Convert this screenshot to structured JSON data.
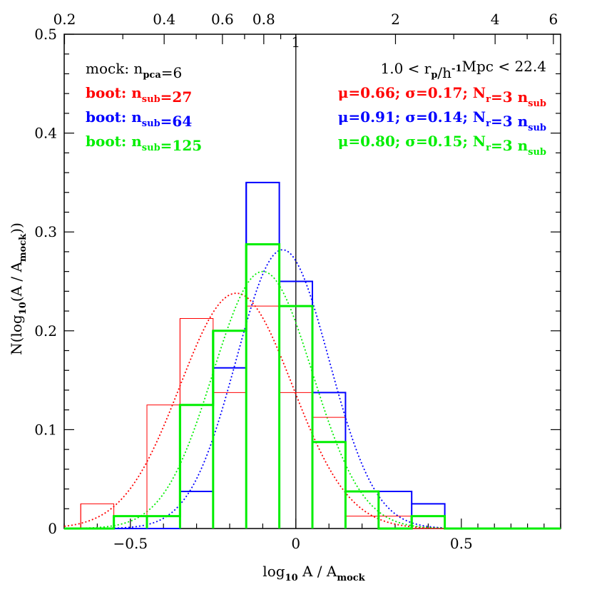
{
  "chart_data": {
    "type": "histogram",
    "xlabel": {
      "main": "log",
      "sub1": "10",
      "mid": " A / A",
      "sub2": "mock"
    },
    "ylabel": {
      "main": "N(log",
      "sub1": "10",
      "mid": "(A / A",
      "sub2": "mock",
      "end": "))"
    },
    "xlim": [
      -0.7,
      0.8
    ],
    "ylim": [
      0,
      0.5
    ],
    "x_ticks": [
      -0.5,
      0,
      0.5
    ],
    "x_tick_labels": [
      "−0.5",
      "0",
      "0.5"
    ],
    "y_ticks": [
      0,
      0.1,
      0.2,
      0.3,
      0.4,
      0.5
    ],
    "y_tick_labels": [
      "0",
      "0.1",
      "0.2",
      "0.3",
      "0.4",
      "0.5"
    ],
    "top_axis": {
      "scale": "linear-ratio",
      "tick_values": [
        0.2,
        0.4,
        0.6,
        0.8,
        2,
        4,
        6
      ],
      "tick_labels": [
        "0.2",
        "0.4",
        "0.6",
        "0.8",
        "2",
        "4",
        "6"
      ],
      "line_value": 1,
      "line_label": "1"
    },
    "bin_edges": [
      -0.65,
      -0.55,
      -0.45,
      -0.35,
      -0.25,
      -0.15,
      -0.05,
      0.05,
      0.15,
      0.25,
      0.35,
      0.45
    ],
    "series": [
      {
        "name": "boot: n_sub=27",
        "color": "#ff0000",
        "width": 1,
        "values": [
          0.025,
          0,
          0.125,
          0.2125,
          0.1375,
          0.225,
          0.1375,
          0.1125,
          0.0125,
          0.0125,
          0
        ],
        "gauss": {
          "mu": -0.18,
          "sigma": 0.17,
          "amp": 0.238
        }
      },
      {
        "name": "boot: n_sub=64",
        "color": "#0000ff",
        "width": 2,
        "values": [
          0,
          0,
          0,
          0.0375,
          0.1625,
          0.35,
          0.25,
          0.1375,
          0.0375,
          0.0375,
          0.025
        ],
        "gauss": {
          "mu": -0.04,
          "sigma": 0.14,
          "amp": 0.282
        }
      },
      {
        "name": "boot: n_sub=125",
        "color": "#00ee00",
        "width": 3,
        "values": [
          0,
          0.0125,
          0.0125,
          0.125,
          0.2,
          0.2875,
          0.225,
          0.0875,
          0.0375,
          0,
          0.0125
        ],
        "gauss": {
          "mu": -0.1,
          "sigma": 0.15,
          "amp": 0.26
        }
      }
    ],
    "legend_left": [
      {
        "parts": [
          [
            "mock: n",
            ""
          ],
          [
            "pca",
            "sub"
          ],
          [
            "=6",
            ""
          ]
        ],
        "color": "#000000"
      },
      {
        "parts": [
          [
            "boot: n",
            ""
          ],
          [
            "sub",
            "sub"
          ],
          [
            "=27",
            ""
          ]
        ],
        "color": "#ff0000"
      },
      {
        "parts": [
          [
            "boot: n",
            ""
          ],
          [
            "sub",
            "sub"
          ],
          [
            "=64",
            ""
          ]
        ],
        "color": "#0000ff"
      },
      {
        "parts": [
          [
            "boot: n",
            ""
          ],
          [
            "sub",
            "sub"
          ],
          [
            "=125",
            ""
          ]
        ],
        "color": "#00ee00"
      }
    ],
    "legend_right": [
      {
        "parts": [
          [
            "1.0 < r",
            ""
          ],
          [
            "p",
            "sub"
          ],
          [
            "/h",
            ""
          ],
          [
            "-1",
            "sup"
          ],
          [
            "Mpc < 22.4",
            ""
          ]
        ],
        "color": "#000000"
      },
      {
        "parts": [
          [
            "μ=0.66; σ=0.17; N",
            ""
          ],
          [
            "r",
            "sub"
          ],
          [
            "=3 n",
            ""
          ],
          [
            "sub",
            "sub"
          ]
        ],
        "color": "#ff0000"
      },
      {
        "parts": [
          [
            "μ=0.91; σ=0.14; N",
            ""
          ],
          [
            "r",
            "sub"
          ],
          [
            "=3 n",
            ""
          ],
          [
            "sub",
            "sub"
          ]
        ],
        "color": "#0000ff"
      },
      {
        "parts": [
          [
            "μ=0.80; σ=0.15; N",
            ""
          ],
          [
            "r",
            "sub"
          ],
          [
            "=3 n",
            ""
          ],
          [
            "sub",
            "sub"
          ]
        ],
        "color": "#00ee00"
      }
    ],
    "grid": false
  }
}
